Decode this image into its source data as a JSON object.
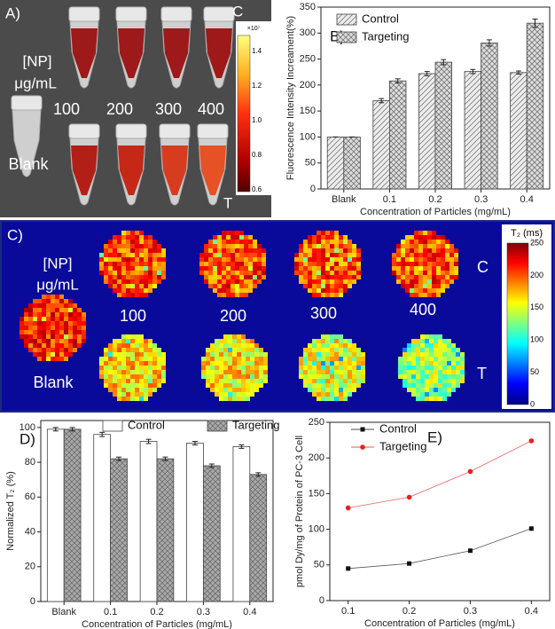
{
  "chart_data": [
    {
      "type": "bar",
      "panel_label": "B)",
      "xlabel": "Concentration of Particles (mg/mL)",
      "ylabel": "Fluorescence Intensity Increament(%)",
      "categories": [
        "Blank",
        "0.1",
        "0.2",
        "0.3",
        "0.4"
      ],
      "series": [
        {
          "name": "Control",
          "color": "#ececec",
          "hatch": "diagonal",
          "values": [
            100,
            170,
            222,
            226,
            224
          ],
          "errors": [
            0,
            4,
            4,
            4,
            3
          ]
        },
        {
          "name": "Targeting",
          "color": "#dcdcdc",
          "hatch": "cross",
          "values": [
            100,
            208,
            244,
            281,
            319
          ],
          "errors": [
            0,
            4,
            5,
            6,
            8
          ]
        }
      ],
      "ylim": [
        0,
        350
      ],
      "yticks": [
        0,
        50,
        100,
        150,
        200,
        250,
        300,
        350
      ],
      "legend": "upper left"
    },
    {
      "type": "bar",
      "panel_label": "D)",
      "xlabel": "Concentration of Particles (mg/mL)",
      "ylabel": "Normalized T₂ (%)",
      "categories": [
        "Blank",
        "0.1",
        "0.2",
        "0.3",
        "0.4"
      ],
      "series": [
        {
          "name": "Control",
          "color": "#ffffff",
          "hatch": "none",
          "values": [
            99,
            96,
            92,
            91,
            89
          ],
          "errors": [
            1,
            1.2,
            1.2,
            1,
            1
          ]
        },
        {
          "name": "Targeting",
          "color": "#a8a8a8",
          "hatch": "cross",
          "values": [
            99,
            82,
            82,
            78,
            73
          ],
          "errors": [
            1,
            1,
            1,
            1,
            1
          ]
        }
      ],
      "ylim": [
        0,
        104
      ],
      "yticks": [
        0,
        20,
        40,
        60,
        80,
        100
      ],
      "legend": "upper right"
    },
    {
      "type": "line",
      "panel_label": "E)",
      "xlabel": "Concentration of Particles (mg/mL)",
      "ylabel": "pmol Dy/mg of Protein of PC-3 Cell",
      "x": [
        0.1,
        0.2,
        0.3,
        0.4
      ],
      "series": [
        {
          "name": "Control",
          "color": "#111111",
          "marker": "square",
          "values": [
            45,
            52,
            70,
            101
          ]
        },
        {
          "name": "Targeting",
          "color": "#e8201c",
          "marker": "circle",
          "values": [
            130,
            145,
            181,
            224
          ]
        }
      ],
      "xlim": [
        0.07,
        0.43
      ],
      "xticks": [
        0.1,
        0.2,
        0.3,
        0.4
      ],
      "ylim": [
        0,
        250
      ],
      "yticks": [
        0,
        50,
        100,
        150,
        200,
        250
      ],
      "legend": "upper left"
    }
  ],
  "panel_a": {
    "label": "A)",
    "conc_label": "[NP]",
    "unit": "μg/mL",
    "doses": [
      "100",
      "200",
      "300",
      "400"
    ],
    "blank": "Blank",
    "control_mark": "C",
    "targeting_mark": "T",
    "colorbar": {
      "scale": "×10⁷",
      "ticks": [
        "1.4",
        "1.2",
        "1.0",
        "0.8",
        "0.6"
      ]
    }
  },
  "panel_c": {
    "label": "C)",
    "conc_label": "[NP]",
    "unit": "μg/mL",
    "doses": [
      "100",
      "200",
      "300",
      "400"
    ],
    "blank": "Blank",
    "control_mark": "C",
    "targeting_mark": "T",
    "colorbar": {
      "title": "T₂ (ms)",
      "ticks": [
        "250",
        "200",
        "150",
        "100",
        "50",
        "0"
      ]
    }
  }
}
